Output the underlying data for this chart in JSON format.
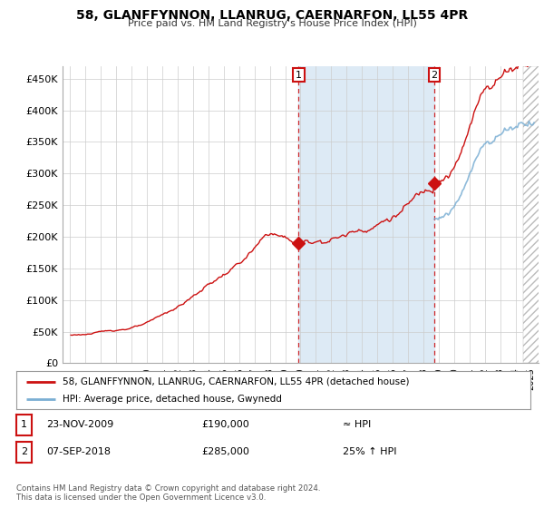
{
  "title": "58, GLANFFYNNON, LLANRUG, CAERNARFON, LL55 4PR",
  "subtitle": "Price paid vs. HM Land Registry's House Price Index (HPI)",
  "legend_line1": "58, GLANFFYNNON, LLANRUG, CAERNARFON, LL55 4PR (detached house)",
  "legend_line2": "HPI: Average price, detached house, Gwynedd",
  "annotation1_date": "23-NOV-2009",
  "annotation1_price": "£190,000",
  "annotation1_hpi": "≈ HPI",
  "annotation2_date": "07-SEP-2018",
  "annotation2_price": "£285,000",
  "annotation2_hpi": "25% ↑ HPI",
  "footer1": "Contains HM Land Registry data © Crown copyright and database right 2024.",
  "footer2": "This data is licensed under the Open Government Licence v3.0.",
  "ylim": [
    0,
    470000
  ],
  "yticks": [
    0,
    50000,
    100000,
    150000,
    200000,
    250000,
    300000,
    350000,
    400000,
    450000
  ],
  "ytick_labels": [
    "£0",
    "£50K",
    "£100K",
    "£150K",
    "£200K",
    "£250K",
    "£300K",
    "£350K",
    "£400K",
    "£450K"
  ],
  "sale1_year": 2009,
  "sale1_month": 11,
  "sale1_y": 190000,
  "sale2_year": 2018,
  "sale2_month": 9,
  "sale2_y": 285000,
  "hpi_color": "#7bafd4",
  "hpi_fill_color": "#ddeaf5",
  "price_color": "#cc1111",
  "background_color": "#ffffff",
  "grid_color": "#cccccc",
  "hatch_color": "#bbbbbb",
  "xlim_left": 1995.0,
  "xlim_right": 2025.5
}
